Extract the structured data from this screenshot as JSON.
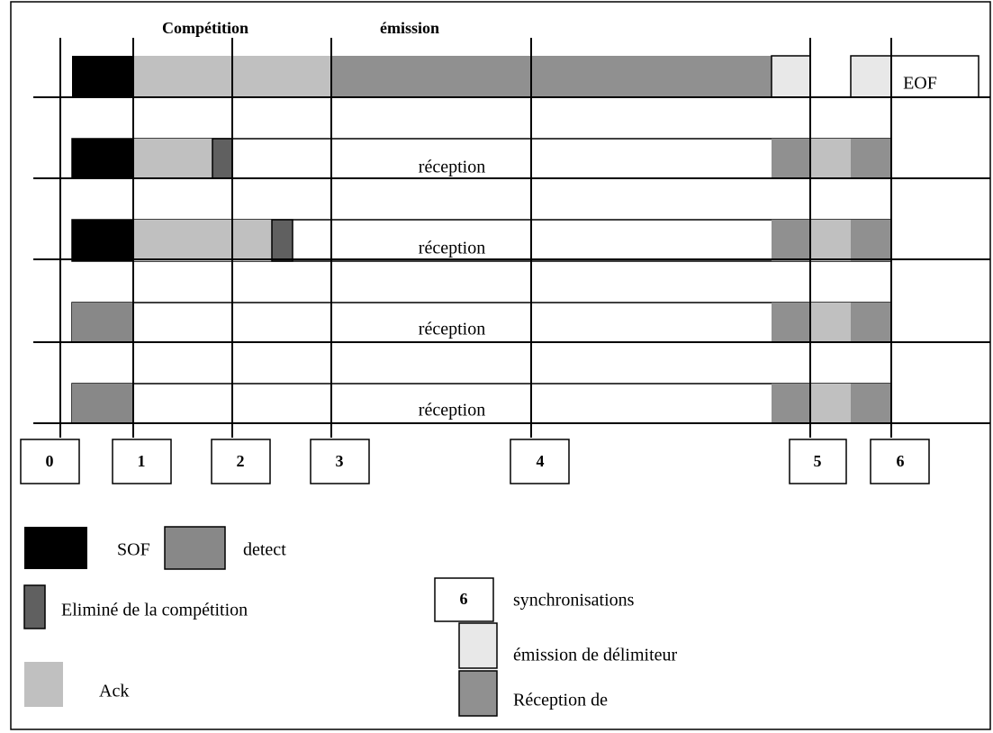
{
  "header": {
    "competition": "Compétition",
    "emission": "émission"
  },
  "rows": [
    {
      "label": "EOF"
    },
    {
      "label": "réception"
    },
    {
      "label": "réception"
    },
    {
      "label": "réception"
    },
    {
      "label": "réception"
    }
  ],
  "sync_points": [
    "0",
    "1",
    "2",
    "3",
    "4",
    "5",
    "6"
  ],
  "legend": {
    "sof": "SOF",
    "detect": "detect",
    "eliminated": "Eliminé de la compétition",
    "ack": "Ack",
    "sync_box": "6",
    "sync": "synchronisations",
    "delimiter": "émission de délimiteur",
    "reception": "Réception de"
  }
}
